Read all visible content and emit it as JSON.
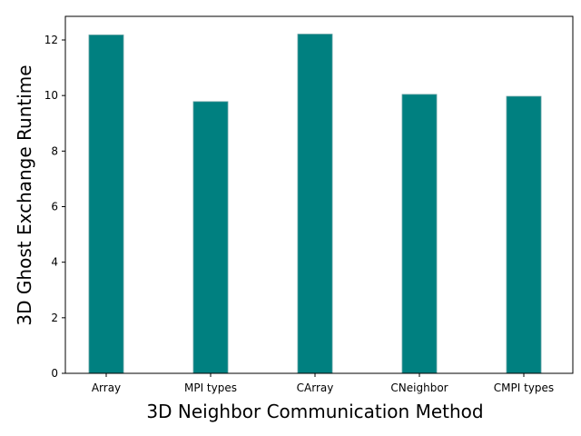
{
  "chart_data": {
    "type": "bar",
    "title": "",
    "xlabel": "3D Neighbor Communication Method",
    "ylabel": "3D Ghost Exchange Runtime",
    "categories": [
      "Array",
      "MPI types",
      "CArray",
      "CNeighbor",
      "CMPI types"
    ],
    "values": [
      12.18,
      9.78,
      12.21,
      10.04,
      9.97
    ],
    "ylim": [
      0,
      12.85
    ],
    "yticks": [
      0,
      2,
      4,
      6,
      8,
      10,
      12
    ],
    "bar_color": "#008080",
    "grid": false,
    "legend": "none"
  }
}
